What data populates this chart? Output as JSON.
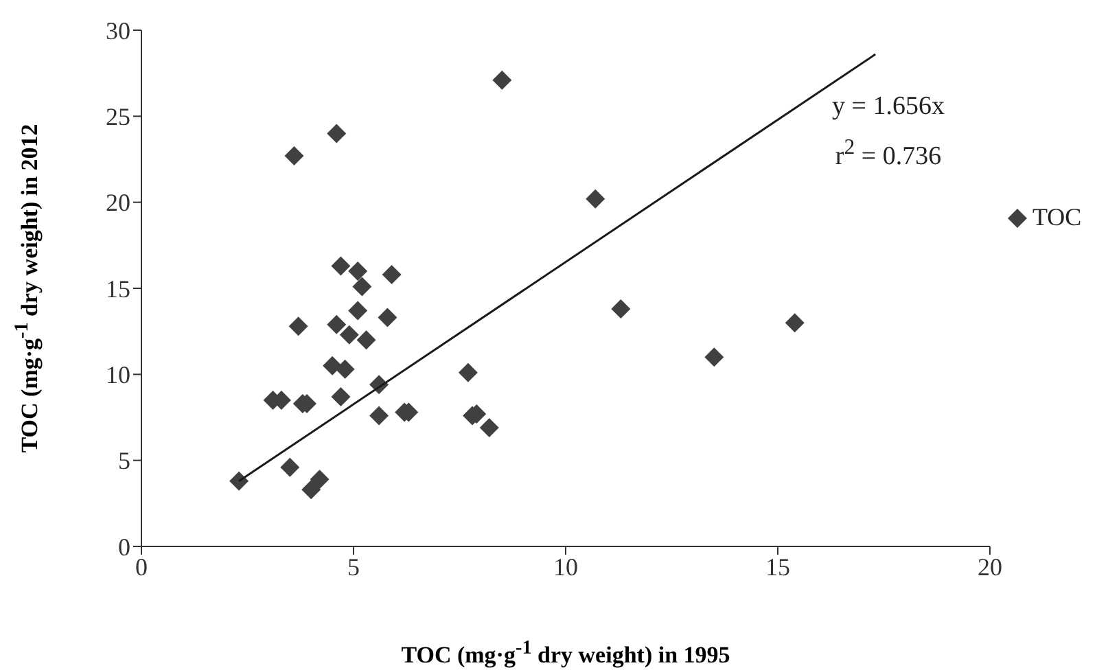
{
  "chart_data": {
    "type": "scatter",
    "xlabel": "TOC (mg·g$^{-1}$ dry weight) in 1995",
    "ylabel": "TOC (mg·g$^{-1}$ dry weight) in 2012",
    "xlim": [
      0,
      20
    ],
    "xticks": [
      0,
      5,
      10,
      15,
      20
    ],
    "ylim": [
      0,
      30
    ],
    "yticks": [
      0,
      5,
      10,
      15,
      20,
      25,
      30
    ],
    "legend": "right",
    "annotations": [
      "y = 1.656x",
      "r$^{2}$ = 0.736"
    ],
    "series": [
      {
        "name": "TOC",
        "color": "#404040",
        "marker": "diamond",
        "x": [
          2.3,
          3.1,
          3.3,
          3.8,
          3.9,
          3.5,
          4.0,
          4.2,
          3.6,
          4.6,
          3.7,
          4.5,
          4.7,
          4.8,
          4.7,
          5.1,
          5.2,
          4.6,
          4.9,
          5.1,
          5.3,
          5.8,
          5.9,
          5.6,
          5.6,
          6.2,
          6.3,
          7.7,
          7.8,
          7.9,
          8.2,
          8.5,
          10.7,
          11.3,
          13.5,
          15.4
        ],
        "values": [
          3.8,
          8.5,
          8.5,
          8.3,
          8.3,
          4.6,
          3.3,
          3.9,
          22.7,
          24.0,
          12.8,
          10.5,
          8.7,
          10.3,
          16.3,
          16.0,
          15.1,
          12.9,
          12.3,
          13.7,
          12.0,
          13.3,
          15.8,
          9.4,
          7.6,
          7.8,
          7.8,
          10.1,
          7.6,
          7.7,
          6.9,
          27.1,
          20.2,
          13.8,
          11.0,
          13.0
        ]
      },
      {
        "type": "line",
        "marker": "none",
        "color": "#1a1a1a",
        "x": [
          2.3,
          17.3
        ],
        "values": [
          3.8,
          28.6
        ]
      }
    ]
  }
}
